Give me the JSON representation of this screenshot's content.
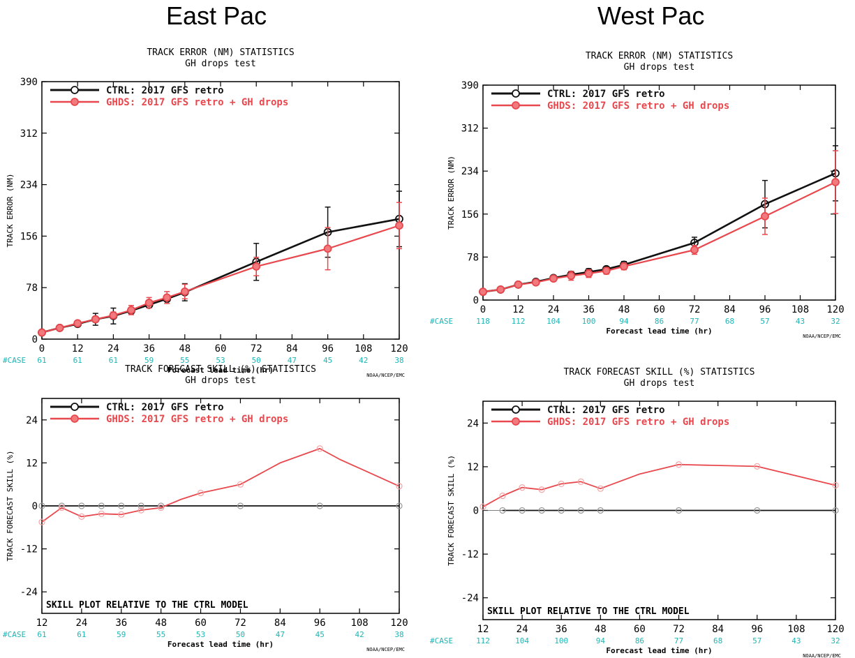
{
  "regions": [
    "East Pac",
    "West Pac"
  ],
  "colors": {
    "ctrl": "#111111",
    "ghds": "#e8484d",
    "case": "#1fb5b5"
  },
  "chart_data": [
    {
      "id": "ep_error",
      "type": "line",
      "title": "TRACK ERROR (NM) STATISTICS",
      "subtitle": "GH drops test",
      "xlabel": "Forecast lead time (hr)",
      "ylabel": "TRACK ERROR (NM)",
      "xlim": [
        0,
        120
      ],
      "ylim": [
        0,
        390
      ],
      "xticks": [
        0,
        12,
        24,
        36,
        48,
        60,
        72,
        84,
        96,
        108,
        120
      ],
      "yticks": [
        0,
        78,
        156,
        234,
        312,
        390
      ],
      "series": [
        {
          "name": "CTRL: 2017 GFS retro",
          "color": "#111111",
          "marker": "circle",
          "x": [
            0,
            6,
            12,
            18,
            24,
            30,
            36,
            42,
            48,
            72,
            96,
            120
          ],
          "y": [
            10,
            17,
            23,
            30,
            35,
            43,
            52,
            61,
            71,
            117,
            162,
            182
          ],
          "err": [
            [
              0,
              18,
              24,
              48,
              72,
              96,
              120
            ],
            [
              4,
              9,
              12,
              13,
              28,
              38,
              42
            ]
          ]
        },
        {
          "name": "GHDS: 2017 GFS retro + GH drops",
          "color": "#e8484d",
          "marker": "circle",
          "x": [
            0,
            6,
            12,
            18,
            24,
            30,
            36,
            42,
            48,
            72,
            96,
            120
          ],
          "y": [
            10,
            17,
            24,
            30,
            36,
            44,
            55,
            63,
            72,
            110,
            137,
            172
          ],
          "err": [
            [
              24,
              30,
              36,
              42,
              48,
              72,
              96,
              120
            ],
            [
              5,
              7,
              8,
              9,
              11,
              14,
              32,
              35
            ]
          ]
        }
      ],
      "case_label": "#CASE",
      "case_x": [
        0,
        12,
        24,
        36,
        48,
        60,
        72,
        84,
        96,
        108,
        120
      ],
      "case_counts": [
        "61",
        "61",
        "61",
        "59",
        "55",
        "53",
        "50",
        "47",
        "45",
        "42",
        "38"
      ],
      "credit": "NOAA/NCEP/EMC"
    },
    {
      "id": "wp_error",
      "type": "line",
      "title": "TRACK ERROR (NM) STATISTICS",
      "subtitle": "GH drops test",
      "xlabel": "Forecast lead time (hr)",
      "ylabel": "TRACK ERROR (NM)",
      "xlim": [
        0,
        120
      ],
      "ylim": [
        0,
        390
      ],
      "xticks": [
        0,
        12,
        24,
        36,
        48,
        60,
        72,
        84,
        96,
        108,
        120
      ],
      "yticks": [
        0,
        78,
        156,
        234,
        312,
        390
      ],
      "series": [
        {
          "name": "CTRL: 2017 GFS retro",
          "color": "#111111",
          "marker": "circle",
          "x": [
            0,
            6,
            12,
            18,
            24,
            30,
            36,
            42,
            48,
            72,
            96,
            120
          ],
          "y": [
            15,
            19,
            28,
            33,
            40,
            46,
            51,
            56,
            64,
            104,
            174,
            230
          ],
          "err": [
            [
              30,
              36,
              42,
              48,
              72,
              96,
              120
            ],
            [
              6,
              6,
              5,
              6,
              10,
              43,
              50
            ]
          ]
        },
        {
          "name": "GHDS: 2017 GFS retro + GH drops",
          "color": "#e8484d",
          "marker": "circle",
          "x": [
            0,
            6,
            12,
            18,
            24,
            30,
            36,
            42,
            48,
            72,
            96,
            120
          ],
          "y": [
            15,
            19,
            28,
            32,
            39,
            44,
            48,
            53,
            61,
            91,
            152,
            214
          ],
          "err": [
            [
              30,
              36,
              42,
              48,
              72,
              96,
              120
            ],
            [
              8,
              7,
              6,
              6,
              8,
              33,
              57
            ]
          ]
        }
      ],
      "case_label": "#CASE",
      "case_x": [
        0,
        12,
        24,
        36,
        48,
        60,
        72,
        84,
        96,
        108,
        120
      ],
      "case_counts": [
        "118",
        "112",
        "104",
        "100",
        "94",
        "86",
        "77",
        "68",
        "57",
        "43",
        "32"
      ],
      "credit": "NOAA/NCEP/EMC"
    },
    {
      "id": "ep_skill",
      "type": "line",
      "title": "TRACK FORECAST SKILL (%) STATISTICS",
      "subtitle": "GH drops test",
      "xlabel": "Forecast lead time (hr)",
      "ylabel": "TRACK FORECAST SKILL (%)",
      "xlim": [
        12,
        120
      ],
      "ylim": [
        -30,
        30
      ],
      "xticks": [
        12,
        24,
        36,
        48,
        60,
        72,
        84,
        96,
        108,
        120
      ],
      "yticks": [
        -24,
        -12,
        0,
        12,
        24
      ],
      "series": [
        {
          "name": "CTRL: 2017 GFS retro",
          "color": "#111111",
          "marker": "open-circle",
          "x": [
            12,
            18,
            24,
            30,
            36,
            42,
            48,
            72,
            96,
            120
          ],
          "y": [
            0,
            0,
            0,
            0,
            0,
            0,
            0,
            0,
            0,
            0
          ]
        },
        {
          "name": "GHDS: 2017 GFS retro + GH drops",
          "color": "#e8484d",
          "marker": "open-circle",
          "x": [
            12,
            18,
            24,
            30,
            36,
            42,
            48,
            54,
            60,
            66,
            72,
            78,
            84,
            90,
            96,
            102,
            108,
            114,
            120
          ],
          "y": [
            -4.5,
            -0.5,
            -3,
            -2.2,
            -2.4,
            -1.2,
            -0.5,
            1.8,
            3.6,
            4.8,
            6,
            9,
            12,
            14,
            16,
            13,
            10.5,
            8,
            5.5
          ]
        }
      ],
      "annotation": "SKILL PLOT RELATIVE TO THE CTRL MODEL",
      "case_label": "#CASE",
      "case_x": [
        12,
        24,
        36,
        48,
        60,
        72,
        84,
        96,
        108,
        120
      ],
      "case_counts": [
        "61",
        "61",
        "59",
        "55",
        "53",
        "50",
        "47",
        "45",
        "42",
        "38"
      ],
      "credit": "NOAA/NCEP/EMC"
    },
    {
      "id": "wp_skill",
      "type": "line",
      "title": "TRACK FORECAST SKILL (%) STATISTICS",
      "subtitle": "GH drops test",
      "xlabel": "Forecast lead time (hr)",
      "ylabel": "TRACK FORECAST SKILL (%)",
      "xlim": [
        12,
        120
      ],
      "ylim": [
        -30,
        30
      ],
      "xticks": [
        12,
        24,
        36,
        48,
        60,
        72,
        84,
        96,
        108,
        120
      ],
      "yticks": [
        -24,
        -12,
        0,
        12,
        24
      ],
      "series": [
        {
          "name": "CTRL: 2017 GFS retro",
          "color": "#111111",
          "marker": "open-circle",
          "x": [
            18,
            24,
            30,
            36,
            42,
            48,
            72,
            96,
            120
          ],
          "y": [
            0,
            0,
            0,
            0,
            0,
            0,
            0,
            0,
            0
          ]
        },
        {
          "name": "GHDS: 2017 GFS retro + GH drops",
          "color": "#e8484d",
          "marker": "open-circle",
          "x": [
            12,
            18,
            24,
            30,
            36,
            42,
            48,
            60,
            72,
            96,
            120
          ],
          "y": [
            1,
            4,
            6.3,
            5.7,
            7.3,
            7.9,
            6,
            10,
            12.6,
            12.1,
            6.9
          ]
        }
      ],
      "annotation": "SKILL PLOT RELATIVE TO THE CTRL MODEL",
      "case_label": "#CASE",
      "case_x": [
        12,
        24,
        36,
        48,
        60,
        72,
        84,
        96,
        108,
        120
      ],
      "case_counts": [
        "112",
        "104",
        "100",
        "94",
        "86",
        "77",
        "68",
        "57",
        "43",
        "32"
      ],
      "credit": "NOAA/NCEP/EMC"
    }
  ]
}
